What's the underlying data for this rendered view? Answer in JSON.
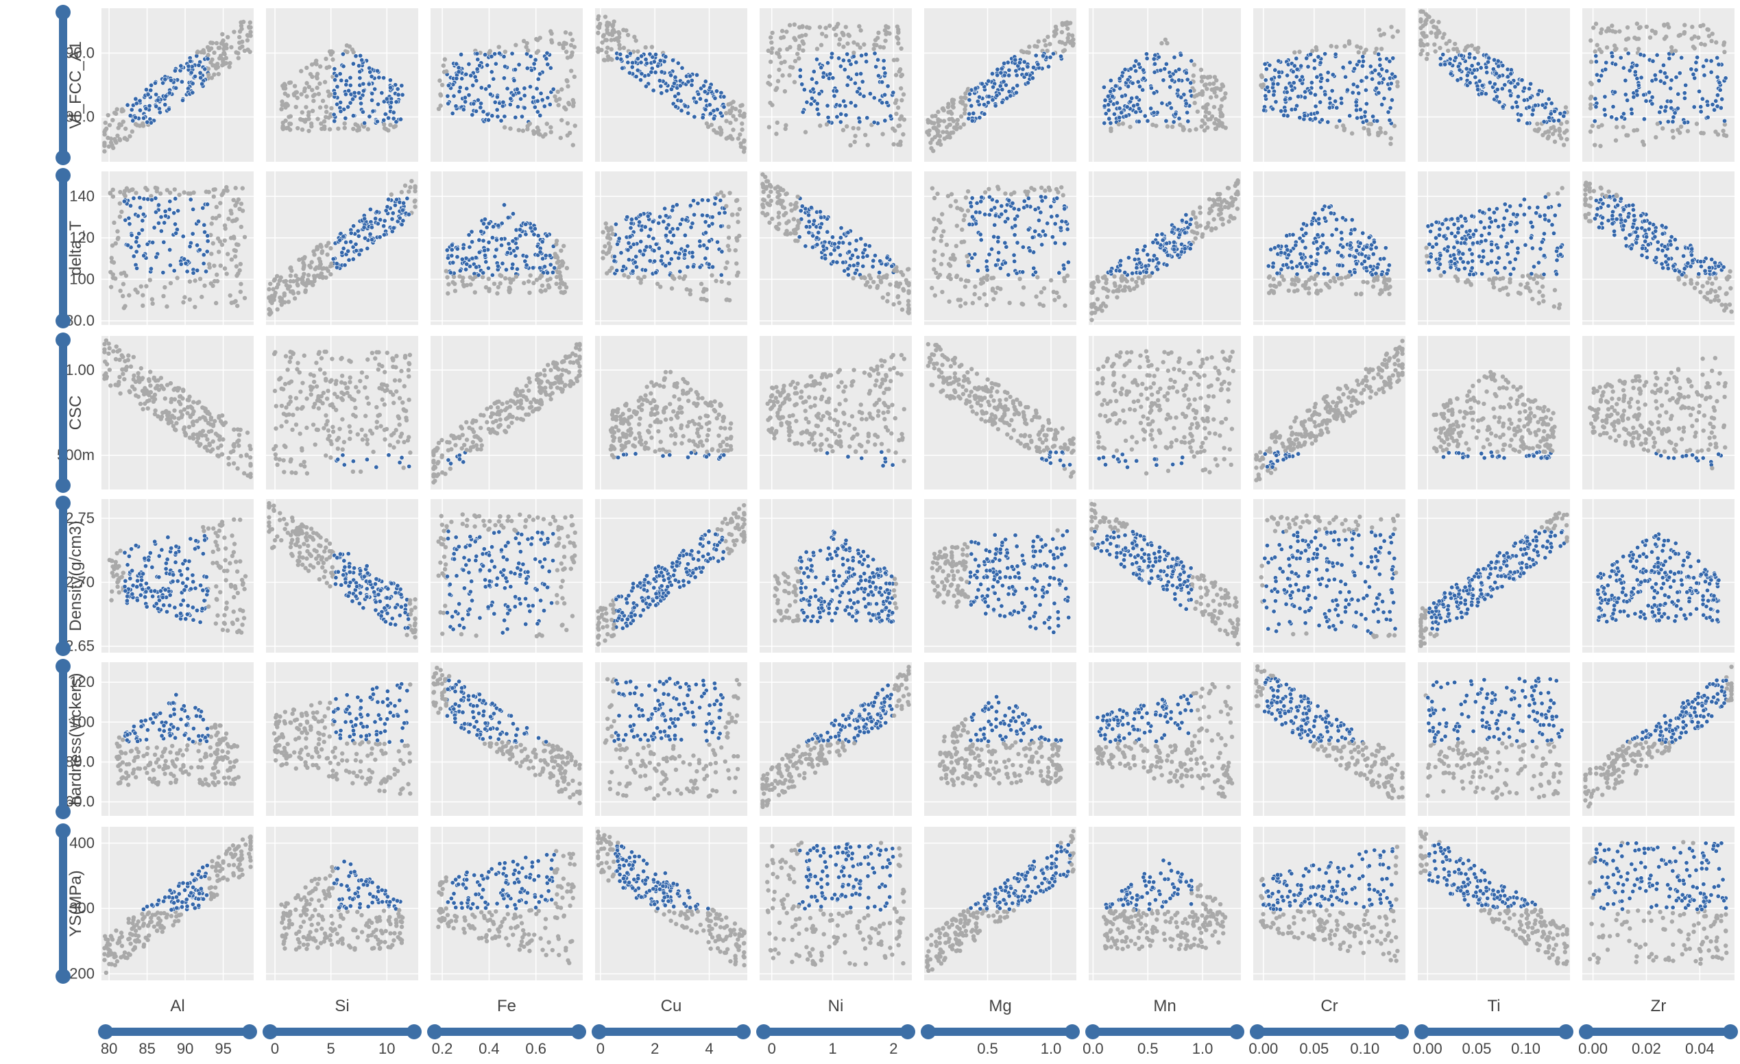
{
  "chart_data": {
    "type": "scatter",
    "title": "",
    "columns": [
      {
        "name": "Al",
        "range": [
          79,
          99
        ],
        "ticks": [
          80,
          85,
          90,
          95
        ],
        "tick_labels": [
          "80",
          "85",
          "90",
          "95"
        ],
        "sel": [
          82,
          93
        ]
      },
      {
        "name": "Si",
        "range": [
          -0.8,
          12.8
        ],
        "ticks": [
          0,
          5,
          10
        ],
        "tick_labels": [
          "0",
          "5",
          "10"
        ],
        "sel": [
          5.2,
          12.0
        ]
      },
      {
        "name": "Fe",
        "range": [
          0.15,
          0.8
        ],
        "ticks": [
          0.2,
          0.4,
          0.6
        ],
        "tick_labels": [
          "0.2",
          "0.4",
          "0.6"
        ],
        "sel": [
          0.22,
          0.68
        ]
      },
      {
        "name": "Cu",
        "range": [
          -0.2,
          5.4
        ],
        "ticks": [
          0,
          2,
          4
        ],
        "tick_labels": [
          "0",
          "2",
          "4"
        ],
        "sel": [
          0.5,
          4.6
        ]
      },
      {
        "name": "Ni",
        "range": [
          -0.2,
          2.3
        ],
        "ticks": [
          0,
          1,
          2
        ],
        "tick_labels": [
          "0",
          "1",
          "2"
        ],
        "sel": [
          0.45,
          2.0
        ]
      },
      {
        "name": "Mg",
        "range": [
          0.0,
          1.2
        ],
        "ticks": [
          0.5,
          1.0
        ],
        "tick_labels": [
          "0.5",
          "1.0"
        ],
        "sel": [
          0.35,
          1.15
        ]
      },
      {
        "name": "Mn",
        "range": [
          -0.04,
          1.35
        ],
        "ticks": [
          0.0,
          0.5,
          1.0
        ],
        "tick_labels": [
          "0.0",
          "0.5",
          "1.0"
        ],
        "sel": [
          0.0,
          0.9
        ]
      },
      {
        "name": "Cr",
        "range": [
          -0.01,
          0.14
        ],
        "ticks": [
          0.0,
          0.05,
          0.1
        ],
        "tick_labels": [
          "0.00",
          "0.05",
          "0.10"
        ],
        "sel": [
          0.0,
          0.13
        ]
      },
      {
        "name": "Ti",
        "range": [
          -0.01,
          0.145
        ],
        "ticks": [
          0.0,
          0.05,
          0.1
        ],
        "tick_labels": [
          "0.00",
          "0.05",
          "0.10"
        ],
        "sel": [
          0.0,
          0.14
        ]
      },
      {
        "name": "Zr",
        "range": [
          -0.004,
          0.053
        ],
        "ticks": [
          0.0,
          0.02,
          0.04
        ],
        "tick_labels": [
          "0.00",
          "0.02",
          "0.04"
        ],
        "sel": [
          0.0,
          0.05
        ]
      }
    ],
    "rows": [
      {
        "name": "Vf_FCC_A1",
        "range": [
          73,
          97
        ],
        "ticks": [
          80,
          90
        ],
        "tick_labels": [
          "80.0",
          "90.0"
        ],
        "sel": [
          79,
          90
        ]
      },
      {
        "name": "delta_T",
        "range": [
          78,
          152
        ],
        "ticks": [
          80,
          100,
          120,
          140
        ],
        "tick_labels": [
          "80.0",
          "100",
          "120",
          "140"
        ],
        "sel": [
          102,
          140
        ]
      },
      {
        "name": "CSC",
        "range": [
          0.3,
          1.2
        ],
        "ticks": [
          0.5,
          1.0
        ],
        "tick_labels": [
          "500m",
          "1.00"
        ],
        "sel": [
          0.43,
          0.52
        ]
      },
      {
        "name": "Density(g/cm3)",
        "range": [
          2.645,
          2.765
        ],
        "ticks": [
          2.65,
          2.7,
          2.75
        ],
        "tick_labels": [
          "2.65",
          "2.70",
          "2.75"
        ],
        "sel": [
          2.66,
          2.74
        ]
      },
      {
        "name": "hardness(Vickers)",
        "range": [
          53,
          130
        ],
        "ticks": [
          60,
          80,
          100,
          120
        ],
        "tick_labels": [
          "60.0",
          "80.0",
          "100",
          "120"
        ],
        "sel": [
          90,
          122
        ]
      },
      {
        "name": "YS(MPa)",
        "range": [
          190,
          425
        ],
        "ticks": [
          200,
          300,
          400
        ],
        "tick_labels": [
          "200",
          "300",
          "400"
        ],
        "sel": [
          298,
          400
        ]
      }
    ],
    "grid": true,
    "legend": "none",
    "series": [
      {
        "color": "#a9a9a9",
        "role": "all samples"
      },
      {
        "color": "#3366aa",
        "role": "selected (brushed) samples"
      }
    ],
    "colors": {
      "panel_bg": "#ebebeb",
      "grid": "#ffffff",
      "background": "#a9a9a9",
      "selected": "#3366aa",
      "slider": "#3d6fa6",
      "text": "#444444"
    }
  }
}
